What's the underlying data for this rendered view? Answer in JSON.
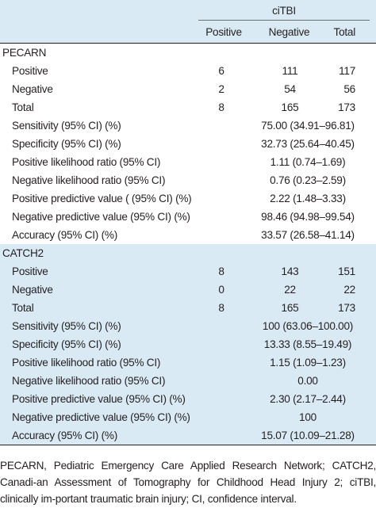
{
  "header": {
    "group": "ciTBI",
    "cols": [
      "Positive",
      "Negative",
      "Total"
    ]
  },
  "sections": [
    {
      "title": "PECARN",
      "counts": [
        {
          "label": "Positive",
          "pos": "6",
          "neg": "111",
          "tot": "117"
        },
        {
          "label": "Negative",
          "pos": "2",
          "neg": "54",
          "tot": "56"
        },
        {
          "label": "Total",
          "pos": "8",
          "neg": "165",
          "tot": "173"
        }
      ],
      "stats": [
        {
          "label": "Sensitivity (95% CI) (%)",
          "value": "75.00 (34.91–96.81)"
        },
        {
          "label": "Specificity (95% CI) (%)",
          "value": "32.73 (25.64–40.45)"
        },
        {
          "label": "Positive likelihood ratio (95% CI)",
          "value": "1.11 (0.74–1.69)"
        },
        {
          "label": "Negative likelihood ratio (95% CI)",
          "value": "0.76 (0.23–2.59)"
        },
        {
          "label": "Positive predictive value ( (95% CI) (%)",
          "value": "2.22 (1.48–3.33)"
        },
        {
          "label": "Negative predictive value (95% CI) (%)",
          "value": "98.46 (94.98–99.54)"
        },
        {
          "label": "Accuracy (95% CI) (%)",
          "value": "33.57 (26.58–41.14)"
        }
      ]
    },
    {
      "title": "CATCH2",
      "counts": [
        {
          "label": "Positive",
          "pos": "8",
          "neg": "143",
          "tot": "151"
        },
        {
          "label": "Negative",
          "pos": "0",
          "neg": "22",
          "tot": "22"
        },
        {
          "label": "Total",
          "pos": "8",
          "neg": "165",
          "tot": "173"
        }
      ],
      "stats": [
        {
          "label": "Sensitivity (95% CI) (%)",
          "value": "100 (63.06–100.00)"
        },
        {
          "label": "Specificity (95% CI) (%)",
          "value": "13.33 (8.55–19.49)"
        },
        {
          "label": "Positive likelihood ratio (95% CI)",
          "value": "1.15 (1.09–1.23)"
        },
        {
          "label": "Negative likelihood ratio (95% CI)",
          "value": "0.00"
        },
        {
          "label": "Positive predictive value (95% CI) (%)",
          "value": "2.30 (2.17–2.44)"
        },
        {
          "label": "Negative predictive value (95% CI) (%)",
          "value": "100"
        },
        {
          "label": "Accuracy (95% CI) (%)",
          "value": "15.07 (10.09–21.28)"
        }
      ]
    }
  ],
  "footnote": "PECARN, Pediatric Emergency Care Applied Research Network; CATCH2, Canadi-an Assessment of Tomography for Childhood Head Injury 2; ciTBI, clinically im-portant traumatic brain injury; CI, confidence interval.",
  "colors": {
    "header_bg": "#daeaf5",
    "section_b_bg": "#daeaf5",
    "text": "#231f20"
  }
}
